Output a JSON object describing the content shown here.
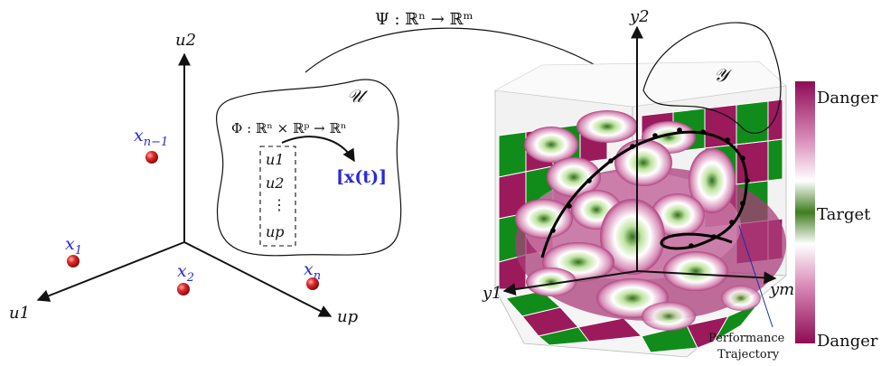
{
  "left_axes": {
    "u2": "u2",
    "u1": "u1",
    "up": "up"
  },
  "points": [
    {
      "label": "x",
      "sub": "n−1"
    },
    {
      "label": "x",
      "sub": "1"
    },
    {
      "label": "x",
      "sub": "2"
    },
    {
      "label": "x",
      "sub": "n"
    }
  ],
  "map_psi": "Ψ : ℝⁿ → ℝᵐ",
  "set_u": "𝒰",
  "map_phi": "Φ : ℝⁿ × ℝᵖ → ℝⁿ",
  "input_vector": [
    "u1",
    "u2",
    "⋮",
    "up"
  ],
  "state": "[x(t)]",
  "right_axes": {
    "y2": "y2",
    "y1": "y1",
    "ym": "ym"
  },
  "set_y": "𝒴",
  "colorbar": {
    "top": "Danger",
    "middle": "Target",
    "bottom": "Danger",
    "colors": {
      "danger": "#8e0b54",
      "target": "#3f7d1f",
      "neutral": "#ffffff"
    }
  },
  "trajectory_label": [
    "Performance",
    "Trajectory"
  ],
  "colors": {
    "point": "#d81f1f",
    "label_blue": "#2a2ad8",
    "grid_green": "#118c1a",
    "grid_magenta": "#9a1a5c"
  }
}
